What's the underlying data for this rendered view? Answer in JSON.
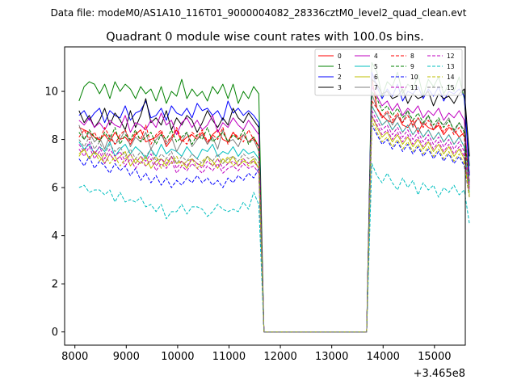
{
  "chart_data": {
    "type": "line",
    "suptitle": "Data file: modeM0/AS1A10_116T01_9000004082_28336cztM0_level2_quad_clean.evt",
    "title": "Quadrant 0 module wise count rates with 100.0s bins.",
    "xlabel": "",
    "ylabel": "",
    "x_offset_label": "+3.465e8",
    "xlim": [
      7800,
      15600
    ],
    "ylim": [
      -0.55,
      11.85
    ],
    "x_ticks": [
      8000,
      9000,
      10000,
      11000,
      12000,
      13000,
      14000,
      15000
    ],
    "x_tick_labels": [
      "8000",
      "9000",
      "10000",
      "11000",
      "12000",
      "13000",
      "14000",
      "15000"
    ],
    "y_ticks": [
      0,
      2,
      4,
      6,
      8,
      10
    ],
    "y_tick_labels": [
      "0",
      "2",
      "4",
      "6",
      "8",
      "10"
    ],
    "legend_position": "top-right",
    "x_start": 8080,
    "x_step": 100,
    "gap_start_index": 37,
    "gap_end_index": 57,
    "series": [
      {
        "name": "0",
        "color": "#ff0000",
        "style": "solid",
        "seg1": [
          8.5,
          8.4,
          8.3,
          8.1,
          8.0,
          8.2,
          7.9,
          8.3,
          8.0,
          8.1,
          7.8,
          8.2,
          8.4,
          7.9,
          8.0,
          8.1,
          8.3,
          7.7,
          8.0,
          8.4,
          7.9,
          8.1,
          8.2,
          8.0,
          8.3,
          7.8,
          8.2,
          8.4,
          8.0,
          7.9,
          8.3,
          8.0,
          8.2,
          7.9,
          8.1,
          7.7
        ],
        "seg2": [
          10.6,
          9.3,
          9.0,
          8.8,
          8.7,
          9.0,
          8.6,
          8.5,
          8.8,
          8.3,
          8.7,
          8.5,
          8.4,
          8.6,
          8.2,
          8.5,
          8.4,
          8.1,
          8.3,
          6.6
        ]
      },
      {
        "name": "1",
        "color": "#008000",
        "style": "solid",
        "seg1": [
          9.6,
          10.2,
          10.4,
          10.3,
          9.9,
          10.3,
          9.7,
          10.4,
          10.0,
          10.3,
          10.1,
          9.7,
          10.2,
          9.9,
          10.1,
          9.6,
          10.2,
          9.5,
          10.0,
          9.8,
          10.5,
          9.7,
          10.1,
          9.8,
          10.0,
          9.6,
          10.2,
          9.9,
          10.3,
          9.7,
          10.3,
          9.5,
          10.0,
          9.7,
          10.2,
          9.9
        ],
        "seg2": [
          11.2,
          10.8,
          9.8,
          10.4,
          10.2,
          10.8,
          9.9,
          10.3,
          10.1,
          10.7,
          9.8,
          10.5,
          10.2,
          10.6,
          9.9,
          10.3,
          10.0,
          10.6,
          9.7,
          6.9
        ]
      },
      {
        "name": "2",
        "color": "#0000ff",
        "style": "solid",
        "seg1": [
          9.0,
          9.2,
          8.8,
          9.1,
          9.3,
          8.7,
          9.2,
          9.0,
          8.9,
          9.4,
          8.8,
          9.1,
          9.2,
          9.6,
          8.9,
          9.0,
          9.3,
          8.8,
          9.4,
          9.1,
          9.0,
          9.3,
          8.9,
          9.5,
          9.2,
          9.3,
          9.0,
          9.2,
          8.8,
          9.6,
          9.1,
          9.3,
          9.0,
          9.2,
          9.0,
          8.7
        ],
        "seg2": [
          10.8,
          10.2,
          9.7,
          10.1,
          9.8,
          10.3,
          9.6,
          10.0,
          9.9,
          10.2,
          9.7,
          10.1,
          9.8,
          10.2,
          9.6,
          10.0,
          9.9,
          10.1,
          9.8,
          6.5
        ]
      },
      {
        "name": "3",
        "color": "#000000",
        "style": "solid",
        "seg1": [
          9.2,
          8.7,
          9.0,
          8.5,
          8.8,
          9.3,
          8.6,
          9.1,
          8.8,
          8.4,
          9.2,
          8.5,
          9.0,
          9.7,
          8.7,
          8.9,
          8.6,
          9.2,
          8.4,
          8.9,
          8.6,
          9.0,
          8.8,
          8.3,
          8.7,
          9.2,
          8.8,
          8.5,
          8.9,
          8.6,
          9.3,
          8.9,
          8.7,
          9.1,
          8.8,
          8.5
        ],
        "seg2": [
          10.5,
          10.3,
          9.9,
          10.0,
          9.7,
          9.8,
          10.1,
          9.5,
          9.9,
          9.7,
          9.8,
          10.0,
          9.4,
          9.9,
          9.7,
          9.8,
          9.5,
          9.9,
          10.1,
          7.3
        ]
      },
      {
        "name": "4",
        "color": "#bf00bf",
        "style": "solid",
        "seg1": [
          8.8,
          8.6,
          8.9,
          8.5,
          8.7,
          8.4,
          8.8,
          8.6,
          8.5,
          9.0,
          8.3,
          8.7,
          8.6,
          8.4,
          8.8,
          8.5,
          9.1,
          8.6,
          8.8,
          8.2,
          8.7,
          8.9,
          8.5,
          8.8,
          8.4,
          8.6,
          9.0,
          8.3,
          8.7,
          8.5,
          8.9,
          8.6,
          8.4,
          8.8,
          8.5,
          8.2
        ],
        "seg2": [
          10.2,
          9.8,
          9.4,
          9.6,
          9.2,
          9.5,
          9.0,
          9.3,
          9.1,
          9.4,
          8.9,
          9.2,
          9.0,
          9.3,
          8.8,
          9.1,
          8.9,
          9.2,
          8.8,
          6.2
        ]
      },
      {
        "name": "5",
        "color": "#00bfbf",
        "style": "solid",
        "seg1": [
          7.9,
          7.6,
          7.8,
          7.4,
          7.7,
          7.5,
          7.9,
          7.3,
          7.6,
          7.8,
          7.4,
          7.7,
          7.5,
          7.2,
          7.6,
          7.3,
          7.8,
          7.4,
          7.6,
          7.5,
          7.3,
          7.7,
          7.4,
          7.2,
          7.6,
          7.5,
          7.8,
          7.3,
          7.5,
          7.4,
          7.7,
          7.3,
          7.6,
          7.4,
          7.5,
          7.2
        ],
        "seg2": [
          9.4,
          9.0,
          8.6,
          8.8,
          8.4,
          8.7,
          8.3,
          8.6,
          8.2,
          8.5,
          8.1,
          8.4,
          8.0,
          8.3,
          7.9,
          8.2,
          7.8,
          8.1,
          7.7,
          5.8
        ]
      },
      {
        "name": "6",
        "color": "#bfbf00",
        "style": "solid",
        "seg1": [
          7.4,
          7.6,
          7.2,
          7.5,
          7.3,
          7.0,
          7.4,
          7.1,
          7.3,
          7.5,
          6.9,
          7.2,
          7.0,
          7.3,
          6.8,
          7.1,
          7.2,
          6.9,
          7.3,
          7.0,
          7.1,
          6.8,
          7.2,
          7.0,
          6.9,
          7.3,
          7.1,
          6.8,
          7.2,
          7.0,
          7.3,
          6.9,
          7.1,
          7.0,
          7.2,
          6.8
        ],
        "seg2": [
          9.0,
          8.5,
          8.1,
          8.3,
          7.9,
          8.2,
          7.8,
          8.1,
          7.7,
          8.0,
          7.6,
          7.9,
          7.5,
          7.8,
          7.4,
          7.7,
          7.3,
          7.6,
          7.2,
          5.7
        ]
      },
      {
        "name": "7",
        "color": "#808080",
        "style": "solid",
        "seg1": [
          8.6,
          8.0,
          8.3,
          7.9,
          8.1,
          7.6,
          8.2,
          7.8,
          8.0,
          8.4,
          7.7,
          8.1,
          7.9,
          8.3,
          7.6,
          8.0,
          8.2,
          7.8,
          8.1,
          7.5,
          7.9,
          8.3,
          7.7,
          8.0,
          8.2,
          7.8,
          8.1,
          7.6,
          8.4,
          7.9,
          8.0,
          7.7,
          8.2,
          7.9,
          8.0,
          7.5
        ],
        "seg2": [
          9.9,
          9.3,
          8.9,
          9.1,
          8.6,
          9.0,
          8.7,
          9.2,
          8.5,
          8.9,
          8.6,
          9.0,
          8.4,
          8.8,
          8.6,
          8.9,
          8.3,
          8.7,
          8.4,
          6.0
        ]
      },
      {
        "name": "8",
        "color": "#ff0000",
        "style": "dashed",
        "seg1": [
          8.1,
          8.4,
          8.0,
          8.3,
          7.9,
          8.5,
          8.1,
          7.8,
          8.2,
          8.4,
          7.9,
          8.3,
          8.0,
          8.6,
          7.8,
          8.2,
          8.4,
          7.9,
          8.1,
          8.5,
          8.0,
          7.8,
          8.3,
          8.1,
          8.4,
          7.9,
          8.2,
          8.0,
          8.5,
          7.8,
          8.3,
          8.1,
          7.9,
          8.4,
          8.0,
          7.7
        ],
        "seg2": [
          9.6,
          9.3,
          8.9,
          9.2,
          8.8,
          9.1,
          8.7,
          9.0,
          8.6,
          8.9,
          8.5,
          8.8,
          8.4,
          8.7,
          8.3,
          8.6,
          8.2,
          8.5,
          8.1,
          6.0
        ]
      },
      {
        "name": "9",
        "color": "#008000",
        "style": "dashed",
        "seg1": [
          8.3,
          8.0,
          8.4,
          8.1,
          7.9,
          8.3,
          8.0,
          8.5,
          7.8,
          8.2,
          8.0,
          8.4,
          7.9,
          8.1,
          8.3,
          7.8,
          8.2,
          8.0,
          8.4,
          7.9,
          8.1,
          8.3,
          7.8,
          8.2,
          8.0,
          8.5,
          7.9,
          8.1,
          8.3,
          7.9,
          8.2,
          8.0,
          8.4,
          7.8,
          8.1,
          7.7
        ],
        "seg2": [
          10.0,
          9.7,
          9.2,
          9.4,
          9.0,
          9.3,
          8.9,
          9.2,
          8.8,
          9.1,
          8.7,
          9.0,
          8.6,
          8.9,
          8.5,
          8.8,
          8.4,
          8.7,
          8.3,
          6.2
        ]
      },
      {
        "name": "10",
        "color": "#0000ff",
        "style": "dashed",
        "seg1": [
          7.2,
          6.9,
          7.3,
          6.8,
          7.1,
          6.9,
          6.6,
          7.0,
          6.7,
          6.9,
          6.5,
          6.8,
          6.3,
          6.6,
          6.2,
          6.5,
          6.1,
          6.4,
          6.0,
          6.3,
          6.1,
          6.4,
          6.2,
          6.5,
          6.2,
          6.4,
          6.1,
          6.3,
          6.0,
          6.4,
          6.2,
          6.5,
          6.3,
          6.6,
          6.4,
          6.8
        ],
        "seg2": [
          8.6,
          8.2,
          7.8,
          8.0,
          7.6,
          7.9,
          7.5,
          7.8,
          7.4,
          7.7,
          7.3,
          7.6,
          7.2,
          7.5,
          7.1,
          7.4,
          7.0,
          7.3,
          6.9,
          5.6
        ]
      },
      {
        "name": "11",
        "color": "#bf00bf",
        "style": "dashed",
        "seg1": [
          7.6,
          7.3,
          7.7,
          7.2,
          7.5,
          7.0,
          7.4,
          7.1,
          7.3,
          6.9,
          7.2,
          6.8,
          7.1,
          6.9,
          7.2,
          6.7,
          7.0,
          6.8,
          7.1,
          6.6,
          6.9,
          6.7,
          7.0,
          6.8,
          6.6,
          6.9,
          6.7,
          7.0,
          6.6,
          6.8,
          6.9,
          6.7,
          7.0,
          6.8,
          6.9,
          6.6
        ],
        "seg2": [
          9.0,
          8.6,
          8.2,
          8.4,
          8.0,
          8.3,
          7.9,
          8.2,
          7.8,
          8.1,
          7.7,
          8.0,
          7.6,
          7.9,
          7.5,
          7.8,
          7.4,
          7.7,
          7.3,
          5.9
        ]
      },
      {
        "name": "12",
        "color": "#bf00bf",
        "style": "dashed",
        "seg1": [
          7.8,
          7.5,
          7.9,
          7.4,
          7.7,
          7.2,
          7.6,
          7.3,
          7.5,
          7.1,
          7.4,
          7.0,
          7.3,
          7.1,
          7.4,
          6.9,
          7.2,
          7.0,
          7.3,
          6.8,
          7.1,
          6.9,
          7.2,
          7.0,
          6.8,
          7.1,
          6.9,
          7.2,
          6.8,
          7.0,
          7.1,
          6.9,
          7.2,
          7.0,
          7.1,
          6.8
        ],
        "seg2": [
          9.2,
          8.8,
          8.4,
          8.6,
          8.2,
          8.5,
          8.1,
          8.4,
          8.0,
          8.3,
          7.9,
          8.2,
          7.8,
          8.1,
          7.7,
          8.0,
          7.6,
          7.9,
          7.5,
          6.1
        ]
      },
      {
        "name": "13",
        "color": "#00bfbf",
        "style": "dashed",
        "seg1": [
          6.0,
          6.1,
          5.8,
          5.9,
          5.9,
          5.7,
          5.9,
          5.4,
          5.8,
          5.4,
          5.5,
          5.4,
          5.6,
          5.2,
          5.3,
          5.0,
          5.3,
          4.7,
          5.0,
          5.0,
          5.3,
          4.9,
          5.2,
          5.2,
          5.1,
          4.8,
          5.0,
          5.3,
          5.1,
          5.0,
          5.1,
          5.0,
          5.4,
          5.1,
          5.8,
          5.3
        ],
        "seg2": [
          7.0,
          6.5,
          6.2,
          6.6,
          6.2,
          5.9,
          6.4,
          6.0,
          6.3,
          5.7,
          6.2,
          5.9,
          6.1,
          5.6,
          6.0,
          5.8,
          6.1,
          5.7,
          5.9,
          4.5
        ]
      },
      {
        "name": "14",
        "color": "#bfbf00",
        "style": "dashed",
        "seg1": [
          7.3,
          7.6,
          7.2,
          7.5,
          7.1,
          7.4,
          7.0,
          7.3,
          6.9,
          7.2,
          7.4,
          7.0,
          7.3,
          6.9,
          7.1,
          7.3,
          6.8,
          7.2,
          7.0,
          7.3,
          6.9,
          7.1,
          7.2,
          6.8,
          7.1,
          7.3,
          6.9,
          7.2,
          7.0,
          7.3,
          6.9,
          7.1,
          7.2,
          6.9,
          7.1,
          6.8
        ],
        "seg2": [
          8.8,
          8.3,
          7.9,
          8.1,
          7.7,
          8.0,
          7.6,
          7.9,
          7.5,
          7.8,
          7.4,
          7.7,
          7.3,
          7.6,
          7.2,
          7.5,
          7.1,
          7.4,
          7.0,
          5.6
        ]
      },
      {
        "name": "15",
        "color": "#808080",
        "style": "dashed",
        "seg1": [
          8.0,
          7.7,
          8.1,
          7.6,
          7.9,
          7.4,
          7.8,
          7.5,
          7.7,
          7.3,
          7.6,
          7.2,
          7.5,
          7.3,
          7.6,
          7.1,
          7.4,
          7.2,
          7.5,
          7.0,
          7.3,
          7.1,
          7.4,
          7.2,
          7.0,
          7.3,
          7.1,
          7.4,
          7.0,
          7.2,
          7.3,
          7.1,
          7.4,
          7.2,
          7.3,
          7.0
        ],
        "seg2": [
          9.4,
          9.0,
          8.6,
          8.8,
          8.4,
          8.7,
          8.3,
          8.6,
          8.2,
          8.5,
          8.1,
          8.4,
          8.0,
          8.3,
          7.9,
          8.2,
          7.8,
          8.1,
          7.7,
          6.0
        ]
      }
    ]
  }
}
